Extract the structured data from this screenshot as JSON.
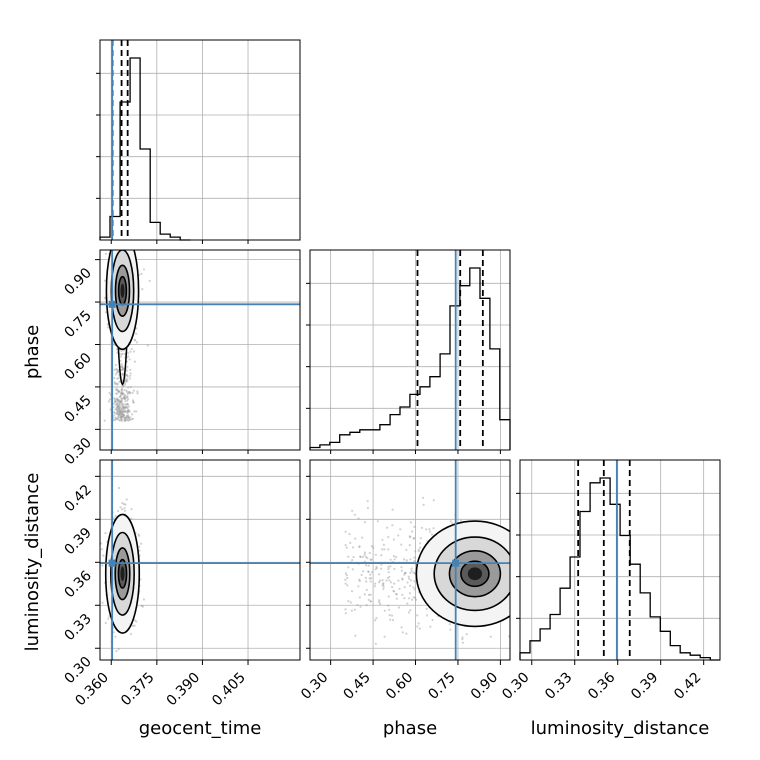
{
  "chart_data": {
    "type": "scatter",
    "grid": true,
    "parameters": [
      "geocent_time",
      "phase",
      "luminosity_distance"
    ],
    "truth": {
      "geocent_time": 0.3603,
      "phase": 0.742,
      "luminosity_distance": 0.3594
    },
    "quantiles": {
      "geocent_time": [
        0.3604,
        0.3634,
        0.3654
      ],
      "phase": [
        0.607,
        0.758,
        0.838
      ],
      "luminosity_distance": [
        0.3324,
        0.3503,
        0.3684
      ]
    },
    "ranges": {
      "geocent_time": [
        0.3563,
        0.4221
      ],
      "phase": [
        0.227,
        0.934
      ],
      "luminosity_distance": [
        0.2918,
        0.4314
      ]
    },
    "ticks": {
      "geocent_time": [
        "0.360",
        "0.375",
        "0.390",
        "0.405"
      ],
      "phase": [
        "0.30",
        "0.45",
        "0.60",
        "0.75",
        "0.90"
      ],
      "luminosity_distance": [
        "0.30",
        "0.33",
        "0.36",
        "0.39",
        "0.42"
      ]
    },
    "histograms": {
      "geocent_time": {
        "edges": [
          0.3563,
          0.3596,
          0.3629,
          0.3662,
          0.3695,
          0.3728,
          0.3761,
          0.3794,
          0.3827,
          0.386
        ],
        "counts": [
          1,
          8,
          47,
          62,
          31,
          6,
          2,
          1,
          0
        ]
      },
      "phase": {
        "edges": [
          0.227,
          0.262,
          0.297,
          0.332,
          0.368,
          0.403,
          0.439,
          0.474,
          0.51,
          0.545,
          0.58,
          0.616,
          0.651,
          0.687,
          0.722,
          0.757,
          0.792,
          0.828,
          0.863,
          0.898,
          0.934
        ],
        "counts": [
          1,
          2,
          3,
          6,
          7,
          8,
          8,
          10,
          14,
          17,
          22,
          25,
          29,
          38,
          57,
          65,
          72,
          60,
          40,
          12
        ]
      },
      "luminosity_distance": {
        "edges": [
          0.2918,
          0.2988,
          0.3058,
          0.3128,
          0.3198,
          0.3268,
          0.3337,
          0.3407,
          0.3477,
          0.3547,
          0.3617,
          0.3687,
          0.3757,
          0.3827,
          0.3897,
          0.3967,
          0.4036,
          0.4106,
          0.4176,
          0.4246,
          0.4314
        ],
        "counts": [
          3,
          8,
          13,
          19,
          30,
          43,
          62,
          74,
          76,
          65,
          52,
          40,
          28,
          18,
          12,
          6,
          3,
          2,
          1,
          0
        ]
      }
    },
    "density_centers": [
      {
        "x": "geocent_time",
        "y": "phase",
        "center": [
          0.3637,
          0.79
        ],
        "spread": [
          0.0023,
          0.09
        ],
        "tail": [
          0.3637,
          0.36
        ]
      },
      {
        "x": "geocent_time",
        "y": "luminosity_distance",
        "center": [
          0.3637,
          0.352
        ],
        "spread": [
          0.0024,
          0.018
        ]
      },
      {
        "x": "phase",
        "y": "luminosity_distance",
        "center": [
          0.81,
          0.352
        ],
        "spread": [
          0.09,
          0.016
        ]
      }
    ],
    "colors": {
      "truth_line": "#4682b4",
      "histogram": "#000000",
      "quantile_line": "#000000",
      "grid": "#b0b0b0",
      "scatter": "#999999"
    }
  }
}
